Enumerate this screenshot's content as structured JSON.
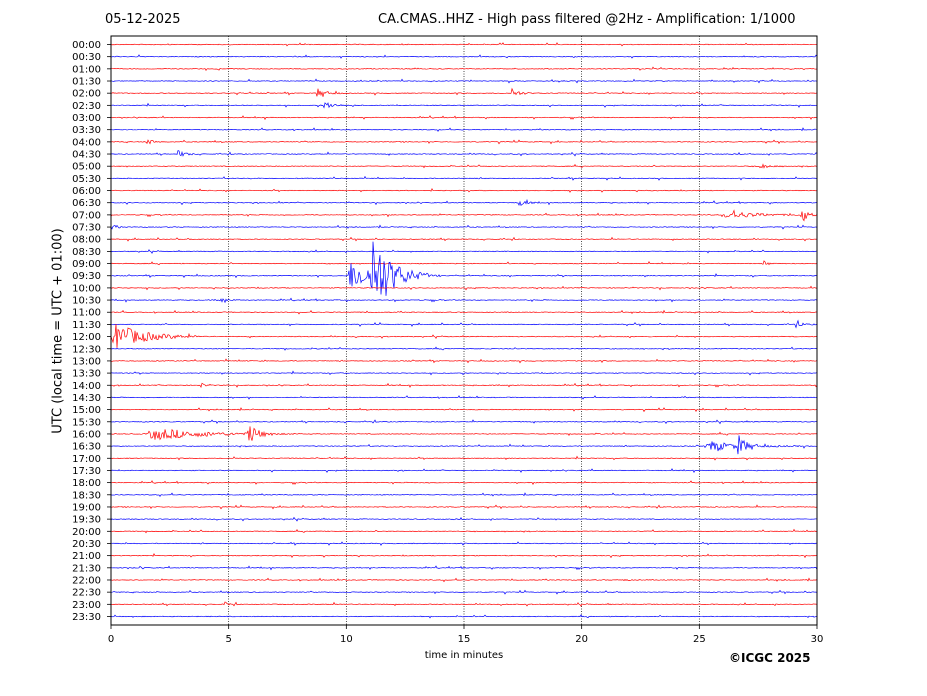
{
  "header": {
    "date": "05-12-2025",
    "title": "CA.CMAS..HHZ - High pass filtered @2Hz - Amplification: 1/1000"
  },
  "footer": {
    "copyright": "©ICGC 2025"
  },
  "chart_data": {
    "type": "line",
    "subtype": "helicorder",
    "xlabel": "time in minutes",
    "ylabel": "UTC (local time = UTC + 01:00)",
    "xlim": [
      0,
      30
    ],
    "x_ticks": [
      0,
      5,
      10,
      15,
      20,
      25,
      30
    ],
    "grid": "vertical dotted at x ticks",
    "colors": {
      "even_rows": "#ff0000",
      "odd_rows": "#0000ff"
    },
    "rows": [
      "00:00",
      "00:30",
      "01:00",
      "01:30",
      "02:00",
      "02:30",
      "03:00",
      "03:30",
      "04:00",
      "04:30",
      "05:00",
      "05:30",
      "06:00",
      "06:30",
      "07:00",
      "07:30",
      "08:00",
      "08:30",
      "09:00",
      "09:30",
      "10:00",
      "10:30",
      "11:00",
      "11:30",
      "12:00",
      "12:30",
      "13:00",
      "13:30",
      "14:00",
      "14:30",
      "15:00",
      "15:30",
      "16:00",
      "16:30",
      "17:00",
      "17:30",
      "18:00",
      "18:30",
      "19:00",
      "19:30",
      "20:00",
      "20:30",
      "21:00",
      "21:30",
      "22:00",
      "22:30",
      "23:00",
      "23:30"
    ],
    "events": [
      {
        "row": "09:30",
        "start_min": 10.0,
        "end_min": 14.0,
        "amplitude": 1.4
      },
      {
        "row": "09:30",
        "start_min": 11.0,
        "end_min": 13.5,
        "amplitude": 3.5
      },
      {
        "row": "12:00",
        "start_min": 0.0,
        "end_min": 4.0,
        "amplitude": 1.3
      },
      {
        "row": "16:00",
        "start_min": 1.5,
        "end_min": 8.0,
        "amplitude": 0.6
      },
      {
        "row": "16:00",
        "start_min": 5.8,
        "end_min": 7.0,
        "amplitude": 1.0
      },
      {
        "row": "16:30",
        "start_min": 25.2,
        "end_min": 29.5,
        "amplitude": 0.5
      },
      {
        "row": "16:30",
        "start_min": 26.6,
        "end_min": 27.5,
        "amplitude": 1.0
      },
      {
        "row": "07:00",
        "start_min": 26.0,
        "end_min": 30.0,
        "amplitude": 0.4
      },
      {
        "row": "07:00",
        "start_min": 29.3,
        "end_min": 30.0,
        "amplitude": 1.0
      },
      {
        "row": "02:00",
        "start_min": 8.7,
        "end_min": 10.0,
        "amplitude": 0.45
      },
      {
        "row": "02:00",
        "start_min": 17.0,
        "end_min": 18.0,
        "amplitude": 0.45
      },
      {
        "row": "02:30",
        "start_min": 9.0,
        "end_min": 10.2,
        "amplitude": 0.45
      },
      {
        "row": "04:00",
        "start_min": 1.5,
        "end_min": 2.2,
        "amplitude": 0.35
      },
      {
        "row": "04:30",
        "start_min": 2.8,
        "end_min": 3.8,
        "amplitude": 0.35
      },
      {
        "row": "05:00",
        "start_min": 27.5,
        "end_min": 28.5,
        "amplitude": 0.35
      },
      {
        "row": "06:30",
        "start_min": 17.3,
        "end_min": 18.2,
        "amplitude": 0.4
      },
      {
        "row": "07:30",
        "start_min": 0.0,
        "end_min": 0.6,
        "amplitude": 0.35
      },
      {
        "row": "09:00",
        "start_min": 27.7,
        "end_min": 28.3,
        "amplitude": 0.3
      },
      {
        "row": "10:30",
        "start_min": 4.5,
        "end_min": 5.5,
        "amplitude": 0.3
      },
      {
        "row": "11:30",
        "start_min": 29.0,
        "end_min": 30.0,
        "amplitude": 0.35
      },
      {
        "row": "14:00",
        "start_min": 3.8,
        "end_min": 4.3,
        "amplitude": 0.25
      },
      {
        "row": "21:30",
        "start_min": 1.2,
        "end_min": 1.6,
        "amplitude": 0.2
      },
      {
        "row": "22:00",
        "start_min": 21.7,
        "end_min": 22.2,
        "amplitude": 0.2
      },
      {
        "row": "23:00",
        "start_min": 4.8,
        "end_min": 5.5,
        "amplitude": 0.25
      }
    ]
  }
}
